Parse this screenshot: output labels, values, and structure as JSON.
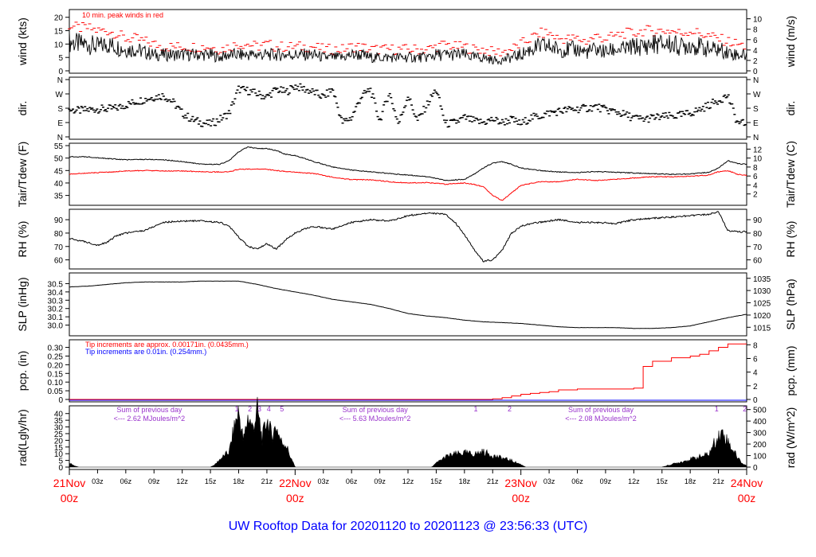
{
  "colors": {
    "peak": "#ff0000",
    "dew": "#ff0000",
    "precip_red": "#ff0000",
    "precip_blue": "#0000ff",
    "annot": "#9933cc",
    "date": "#ff0000",
    "footer": "#0000ff",
    "line": "#000000"
  },
  "footer": {
    "title": "UW Rooftop Data for 20201120  to  20201123 @ 23:56:33  (UTC)"
  },
  "time_axis": {
    "day_labels": [
      {
        "day": "21Nov",
        "z": "00z",
        "hour": 0
      },
      {
        "day": "22Nov",
        "z": "00z",
        "hour": 24
      },
      {
        "day": "23Nov",
        "z": "00z",
        "hour": 48
      },
      {
        "day": "24Nov",
        "z": "00z",
        "hour": 72
      }
    ],
    "ticks": [
      {
        "label": "03z",
        "hour": 3
      },
      {
        "label": "06z",
        "hour": 6
      },
      {
        "label": "09z",
        "hour": 9
      },
      {
        "label": "12z",
        "hour": 12
      },
      {
        "label": "15z",
        "hour": 15
      },
      {
        "label": "18z",
        "hour": 18
      },
      {
        "label": "21z",
        "hour": 21
      },
      {
        "label": "03z",
        "hour": 27
      },
      {
        "label": "06z",
        "hour": 30
      },
      {
        "label": "09z",
        "hour": 33
      },
      {
        "label": "12z",
        "hour": 36
      },
      {
        "label": "15z",
        "hour": 39
      },
      {
        "label": "18z",
        "hour": 42
      },
      {
        "label": "21z",
        "hour": 45
      },
      {
        "label": "03z",
        "hour": 51
      },
      {
        "label": "06z",
        "hour": 54
      },
      {
        "label": "09z",
        "hour": 57
      },
      {
        "label": "12z",
        "hour": 60
      },
      {
        "label": "15z",
        "hour": 63
      },
      {
        "label": "18z",
        "hour": 66
      },
      {
        "label": "21z",
        "hour": 69
      }
    ]
  },
  "chart_data": [
    {
      "type": "line",
      "name": "wind",
      "ylabel_left": "wind (kts)",
      "ylabel_right": "wind (m/s)",
      "ylim": [
        0,
        22
      ],
      "left_ticks": [
        0,
        5,
        10,
        15,
        20
      ],
      "right_ticks": [
        "0",
        "2",
        "4",
        "6",
        "8",
        "10"
      ],
      "right_tick_values": [
        0,
        3.89,
        7.78,
        11.66,
        15.55,
        19.44
      ],
      "annotation": "10 min. peak winds in red",
      "x_hours": [
        0,
        1,
        2,
        3,
        4,
        5,
        6,
        7,
        8,
        9,
        10,
        11,
        12,
        13,
        14,
        15,
        16,
        17,
        18,
        19,
        20,
        21,
        22,
        23,
        24,
        25,
        26,
        27,
        28,
        29,
        30,
        31,
        32,
        33,
        34,
        35,
        36,
        37,
        38,
        39,
        40,
        41,
        42,
        43,
        44,
        45,
        46,
        47,
        48,
        49,
        50,
        51,
        52,
        53,
        54,
        55,
        56,
        57,
        58,
        59,
        60,
        61,
        62,
        63,
        64,
        65,
        66,
        67,
        68,
        69,
        70,
        71,
        72
      ],
      "series": [
        {
          "values": [
            11,
            10,
            10,
            9,
            10,
            9,
            8,
            8,
            7,
            6,
            6,
            6,
            6,
            6,
            6,
            6,
            5,
            6,
            6,
            6,
            6,
            6,
            6,
            6,
            6,
            6,
            6,
            5,
            5,
            5,
            6,
            6,
            5,
            5,
            5,
            5,
            5,
            5,
            5,
            6,
            6,
            6,
            6,
            5,
            5,
            4,
            4,
            5,
            6,
            8,
            9,
            9,
            8,
            8,
            8,
            7,
            8,
            7,
            8,
            8,
            9,
            9,
            10,
            10,
            10,
            9,
            10,
            9,
            8,
            8,
            7,
            6,
            6
          ]
        },
        {
          "values": [
            17,
            16,
            16,
            15,
            15,
            14,
            12,
            12,
            11,
            10,
            9,
            9,
            9,
            9,
            9,
            9,
            8,
            9,
            10,
            10,
            9,
            10,
            9,
            9,
            9,
            9,
            9,
            8,
            8,
            8,
            9,
            9,
            8,
            8,
            8,
            8,
            8,
            8,
            8,
            9,
            10,
            9,
            9,
            8,
            8,
            7,
            7,
            8,
            10,
            12,
            14,
            14,
            12,
            12,
            12,
            11,
            13,
            12,
            13,
            14,
            14,
            15,
            15,
            15,
            15,
            14,
            15,
            14,
            13,
            12,
            11,
            10,
            9
          ]
        }
      ]
    },
    {
      "type": "scatter",
      "name": "direction",
      "ylabel_left": "dir.",
      "ylabel_right": "dir.",
      "ylim": [
        0,
        360
      ],
      "tick_labels": [
        "N",
        "E",
        "S",
        "W",
        "N"
      ],
      "tick_values": [
        0,
        90,
        180,
        270,
        360
      ],
      "x_hours": [
        0,
        1,
        2,
        3,
        4,
        5,
        6,
        7,
        8,
        9,
        10,
        11,
        12,
        13,
        14,
        15,
        16,
        17,
        18,
        19,
        20,
        21,
        22,
        23,
        24,
        25,
        26,
        27,
        28,
        29,
        30,
        31,
        32,
        33,
        34,
        35,
        36,
        37,
        38,
        39,
        40,
        41,
        42,
        43,
        44,
        45,
        46,
        47,
        48,
        49,
        50,
        51,
        52,
        53,
        54,
        55,
        56,
        57,
        58,
        59,
        60,
        61,
        62,
        63,
        64,
        65,
        66,
        67,
        68,
        69,
        70,
        71,
        72
      ],
      "values": [
        170,
        165,
        170,
        175,
        175,
        180,
        200,
        220,
        235,
        250,
        260,
        220,
        150,
        110,
        90,
        80,
        110,
        150,
        300,
        290,
        270,
        250,
        300,
        280,
        320,
        300,
        280,
        250,
        300,
        90,
        120,
        250,
        300,
        100,
        280,
        80,
        260,
        100,
        200,
        300,
        80,
        90,
        120,
        100,
        90,
        110,
        90,
        110,
        80,
        120,
        130,
        150,
        160,
        170,
        175,
        180,
        190,
        170,
        160,
        140,
        120,
        110,
        120,
        125,
        130,
        135,
        150,
        170,
        200,
        230,
        260,
        90,
        80
      ]
    },
    {
      "type": "line",
      "name": "temperature",
      "ylabel_left": "Tair/Tdew (F)",
      "ylabel_right": "Tair/Tdew (C)",
      "ylim": [
        32,
        55
      ],
      "left_ticks": [
        35,
        40,
        45,
        50,
        55
      ],
      "right_ticks": [
        "2",
        "4",
        "6",
        "8",
        "10",
        "12"
      ],
      "right_tick_values": [
        35.6,
        39.2,
        42.8,
        46.4,
        50,
        53.6
      ],
      "x_hours": [
        0,
        2,
        4,
        6,
        8,
        10,
        12,
        14,
        16,
        17,
        18,
        19,
        20,
        21,
        22,
        23,
        24,
        26,
        28,
        30,
        32,
        34,
        36,
        38,
        40,
        42,
        43,
        44,
        45,
        46,
        47,
        48,
        50,
        52,
        54,
        56,
        58,
        60,
        62,
        64,
        66,
        68,
        69,
        70,
        71,
        72
      ],
      "series": [
        {
          "values": [
            50.5,
            50.5,
            49.8,
            49.3,
            49.5,
            49.3,
            48.6,
            47.5,
            47.5,
            49.0,
            52.5,
            54.5,
            53.8,
            53.8,
            53.0,
            51.5,
            51.0,
            48.6,
            46.4,
            45.2,
            44.5,
            43.8,
            43.2,
            42.6,
            41.0,
            41.5,
            43.5,
            46.0,
            48.0,
            48.5,
            47.5,
            46.0,
            45.0,
            44.4,
            44.2,
            44.6,
            44.3,
            44.0,
            43.7,
            43.5,
            43.6,
            44.3,
            46.0,
            49.0,
            47.8,
            47.5
          ]
        },
        {
          "values": [
            43.5,
            44.0,
            44.3,
            44.8,
            45.0,
            44.8,
            44.8,
            44.5,
            44.4,
            44.5,
            45.5,
            45.5,
            45.5,
            45.5,
            45.0,
            44.6,
            44.4,
            43.8,
            42.3,
            41.3,
            41.3,
            40.5,
            40.0,
            40.2,
            39.5,
            40.0,
            39.5,
            38.5,
            35.0,
            33.0,
            36.0,
            39.0,
            40.5,
            40.5,
            41.5,
            41.0,
            41.5,
            42.0,
            42.5,
            42.5,
            42.7,
            43.2,
            44.5,
            45.0,
            43.5,
            43.0
          ]
        }
      ]
    },
    {
      "type": "line",
      "name": "rh",
      "ylabel_left": "RH (%)",
      "ylabel_right": "RH (%)",
      "ylim": [
        55,
        96
      ],
      "left_ticks": [
        60,
        70,
        80,
        90
      ],
      "right_ticks": [
        "60",
        "70",
        "80",
        "90"
      ],
      "right_tick_values": [
        60,
        70,
        80,
        90
      ],
      "x_hours": [
        0,
        2,
        3,
        4,
        5,
        6,
        8,
        10,
        12,
        14,
        16,
        17,
        18,
        19,
        20,
        21,
        22,
        23,
        24,
        25,
        26,
        28,
        30,
        32,
        34,
        36,
        38,
        40,
        41,
        42,
        43,
        44,
        45,
        46,
        47,
        48,
        49,
        50,
        52,
        54,
        56,
        58,
        60,
        62,
        64,
        66,
        68,
        69,
        70,
        71,
        72
      ],
      "values": [
        76,
        73,
        71,
        73,
        78,
        80,
        82,
        88,
        89,
        89,
        88,
        85,
        77,
        70,
        68,
        72,
        68,
        75,
        80,
        83,
        85,
        83,
        88,
        90,
        89,
        93,
        95,
        94,
        88,
        79,
        68,
        59,
        60,
        67,
        80,
        85,
        87,
        88,
        90,
        88,
        88,
        87,
        90,
        91,
        92,
        93,
        94,
        96,
        82,
        81,
        81
      ]
    },
    {
      "type": "line",
      "name": "pressure",
      "ylabel_left": "SLP (inHg)",
      "ylabel_right": "SLP (hPa)",
      "ylim": [
        29.9,
        30.6
      ],
      "left_ticks": [
        30.0,
        30.1,
        30.2,
        30.3,
        30.4,
        30.5
      ],
      "left_tick_labels": [
        "30.0",
        "30.1",
        "30.2",
        "30.3",
        "30.4",
        "30.5"
      ],
      "right_ticks": [
        "1015",
        "1020",
        "1025",
        "1030",
        "1035"
      ],
      "right_tick_values": [
        29.974,
        30.121,
        30.269,
        30.417,
        30.564
      ],
      "x_hours": [
        0,
        2,
        4,
        6,
        8,
        10,
        12,
        14,
        16,
        18,
        20,
        22,
        24,
        26,
        28,
        30,
        32,
        34,
        36,
        38,
        40,
        42,
        44,
        46,
        48,
        50,
        52,
        54,
        56,
        58,
        60,
        62,
        64,
        66,
        68,
        70,
        72
      ],
      "values": [
        30.46,
        30.47,
        30.49,
        30.51,
        30.52,
        30.52,
        30.52,
        30.53,
        30.53,
        30.53,
        30.49,
        30.44,
        30.4,
        30.36,
        30.31,
        30.28,
        30.25,
        30.2,
        30.14,
        30.11,
        30.09,
        30.06,
        30.04,
        30.03,
        30.02,
        30.0,
        29.98,
        29.97,
        29.97,
        29.97,
        29.96,
        29.96,
        29.97,
        29.99,
        30.04,
        30.09,
        30.13
      ]
    },
    {
      "type": "line",
      "name": "precipitation",
      "ylabel_left": "pcp. (in)",
      "ylabel_right": "pcp. (mm)",
      "ylim": [
        0,
        0.33
      ],
      "left_ticks": [
        0,
        0.05,
        0.1,
        0.15,
        0.2,
        0.25,
        0.3
      ],
      "left_tick_labels": [
        "0",
        "0.05",
        "0.10",
        "0.15",
        "0.20",
        "0.25",
        "0.30"
      ],
      "right_ticks": [
        "0",
        "2",
        "4",
        "6",
        "8"
      ],
      "right_tick_values": [
        0,
        0.0787,
        0.1575,
        0.2362,
        0.315
      ],
      "annotations": [
        "Tip increments are approx. 0.00171in. (0.0435mm.)",
        "Tip increments are 0.01in. (0.254mm.)"
      ],
      "x_hours": [
        0,
        43,
        45,
        46,
        47,
        48,
        49,
        50,
        51,
        52,
        54,
        57,
        60,
        61,
        62,
        64,
        66,
        67,
        68,
        69,
        70,
        72
      ],
      "values": [
        0,
        0,
        0.003,
        0.01,
        0.02,
        0.03,
        0.035,
        0.04,
        0.045,
        0.055,
        0.06,
        0.06,
        0.065,
        0.19,
        0.22,
        0.24,
        0.25,
        0.26,
        0.28,
        0.3,
        0.32,
        0.32
      ]
    },
    {
      "type": "area",
      "name": "radiation",
      "ylabel_left": "rad(Lgly/hr)",
      "ylabel_right": "rad (W/m^2)",
      "ylim": [
        0,
        44
      ],
      "left_ticks": [
        0,
        5,
        10,
        15,
        20,
        25,
        30,
        35,
        40
      ],
      "right_ticks": [
        "0",
        "100",
        "200",
        "300",
        "400",
        "500"
      ],
      "right_tick_values": [
        0,
        8.6,
        17.2,
        25.8,
        34.4,
        43.0
      ],
      "annotations": [
        {
          "text": "Sum of previous day",
          "hour": 8.5,
          "line": 1
        },
        {
          "text": "<--- 2.62 MJoules/m^2",
          "hour": 8.5,
          "line": 2
        },
        {
          "text": "Sum of previous day",
          "hour": 32.5,
          "line": 1
        },
        {
          "text": "<--- 5.63 MJoules/m^2",
          "hour": 32.5,
          "line": 2
        },
        {
          "text": "Sum of previous day",
          "hour": 56.5,
          "line": 1
        },
        {
          "text": "<--- 2.08 MJoules/m^2",
          "hour": 56.5,
          "line": 2
        }
      ],
      "markers": [
        {
          "text": "1",
          "hour": 17.8
        },
        {
          "text": "2",
          "hour": 19.2
        },
        {
          "text": "3",
          "hour": 20.2
        },
        {
          "text": "4",
          "hour": 21.2
        },
        {
          "text": "5",
          "hour": 22.6
        },
        {
          "text": "1",
          "hour": 43.2
        },
        {
          "text": "2",
          "hour": 46.8
        },
        {
          "text": "1",
          "hour": 68.8
        },
        {
          "text": "2",
          "hour": 71.8
        }
      ],
      "x_hours": [
        0,
        0.5,
        1,
        15,
        15.5,
        16,
        17,
        17.5,
        18,
        18.5,
        19,
        19.5,
        20,
        20.5,
        21,
        21.5,
        22,
        22.5,
        23,
        23.5,
        24,
        38.5,
        39,
        40,
        41,
        42,
        43,
        44,
        45,
        46,
        47,
        48,
        48.5,
        63,
        64,
        65,
        66,
        67,
        68,
        68.5,
        69,
        69.5,
        70,
        70.5,
        71,
        71.5,
        72
      ],
      "values": [
        3,
        1,
        0,
        0,
        2,
        6,
        12,
        30,
        44,
        20,
        40,
        30,
        45,
        22,
        38,
        25,
        32,
        20,
        18,
        8,
        0,
        0,
        3,
        8,
        10,
        11,
        10,
        12,
        9,
        7,
        5,
        2,
        0,
        0,
        2,
        4,
        6,
        8,
        10,
        18,
        24,
        27,
        20,
        14,
        8,
        3,
        1
      ]
    }
  ]
}
